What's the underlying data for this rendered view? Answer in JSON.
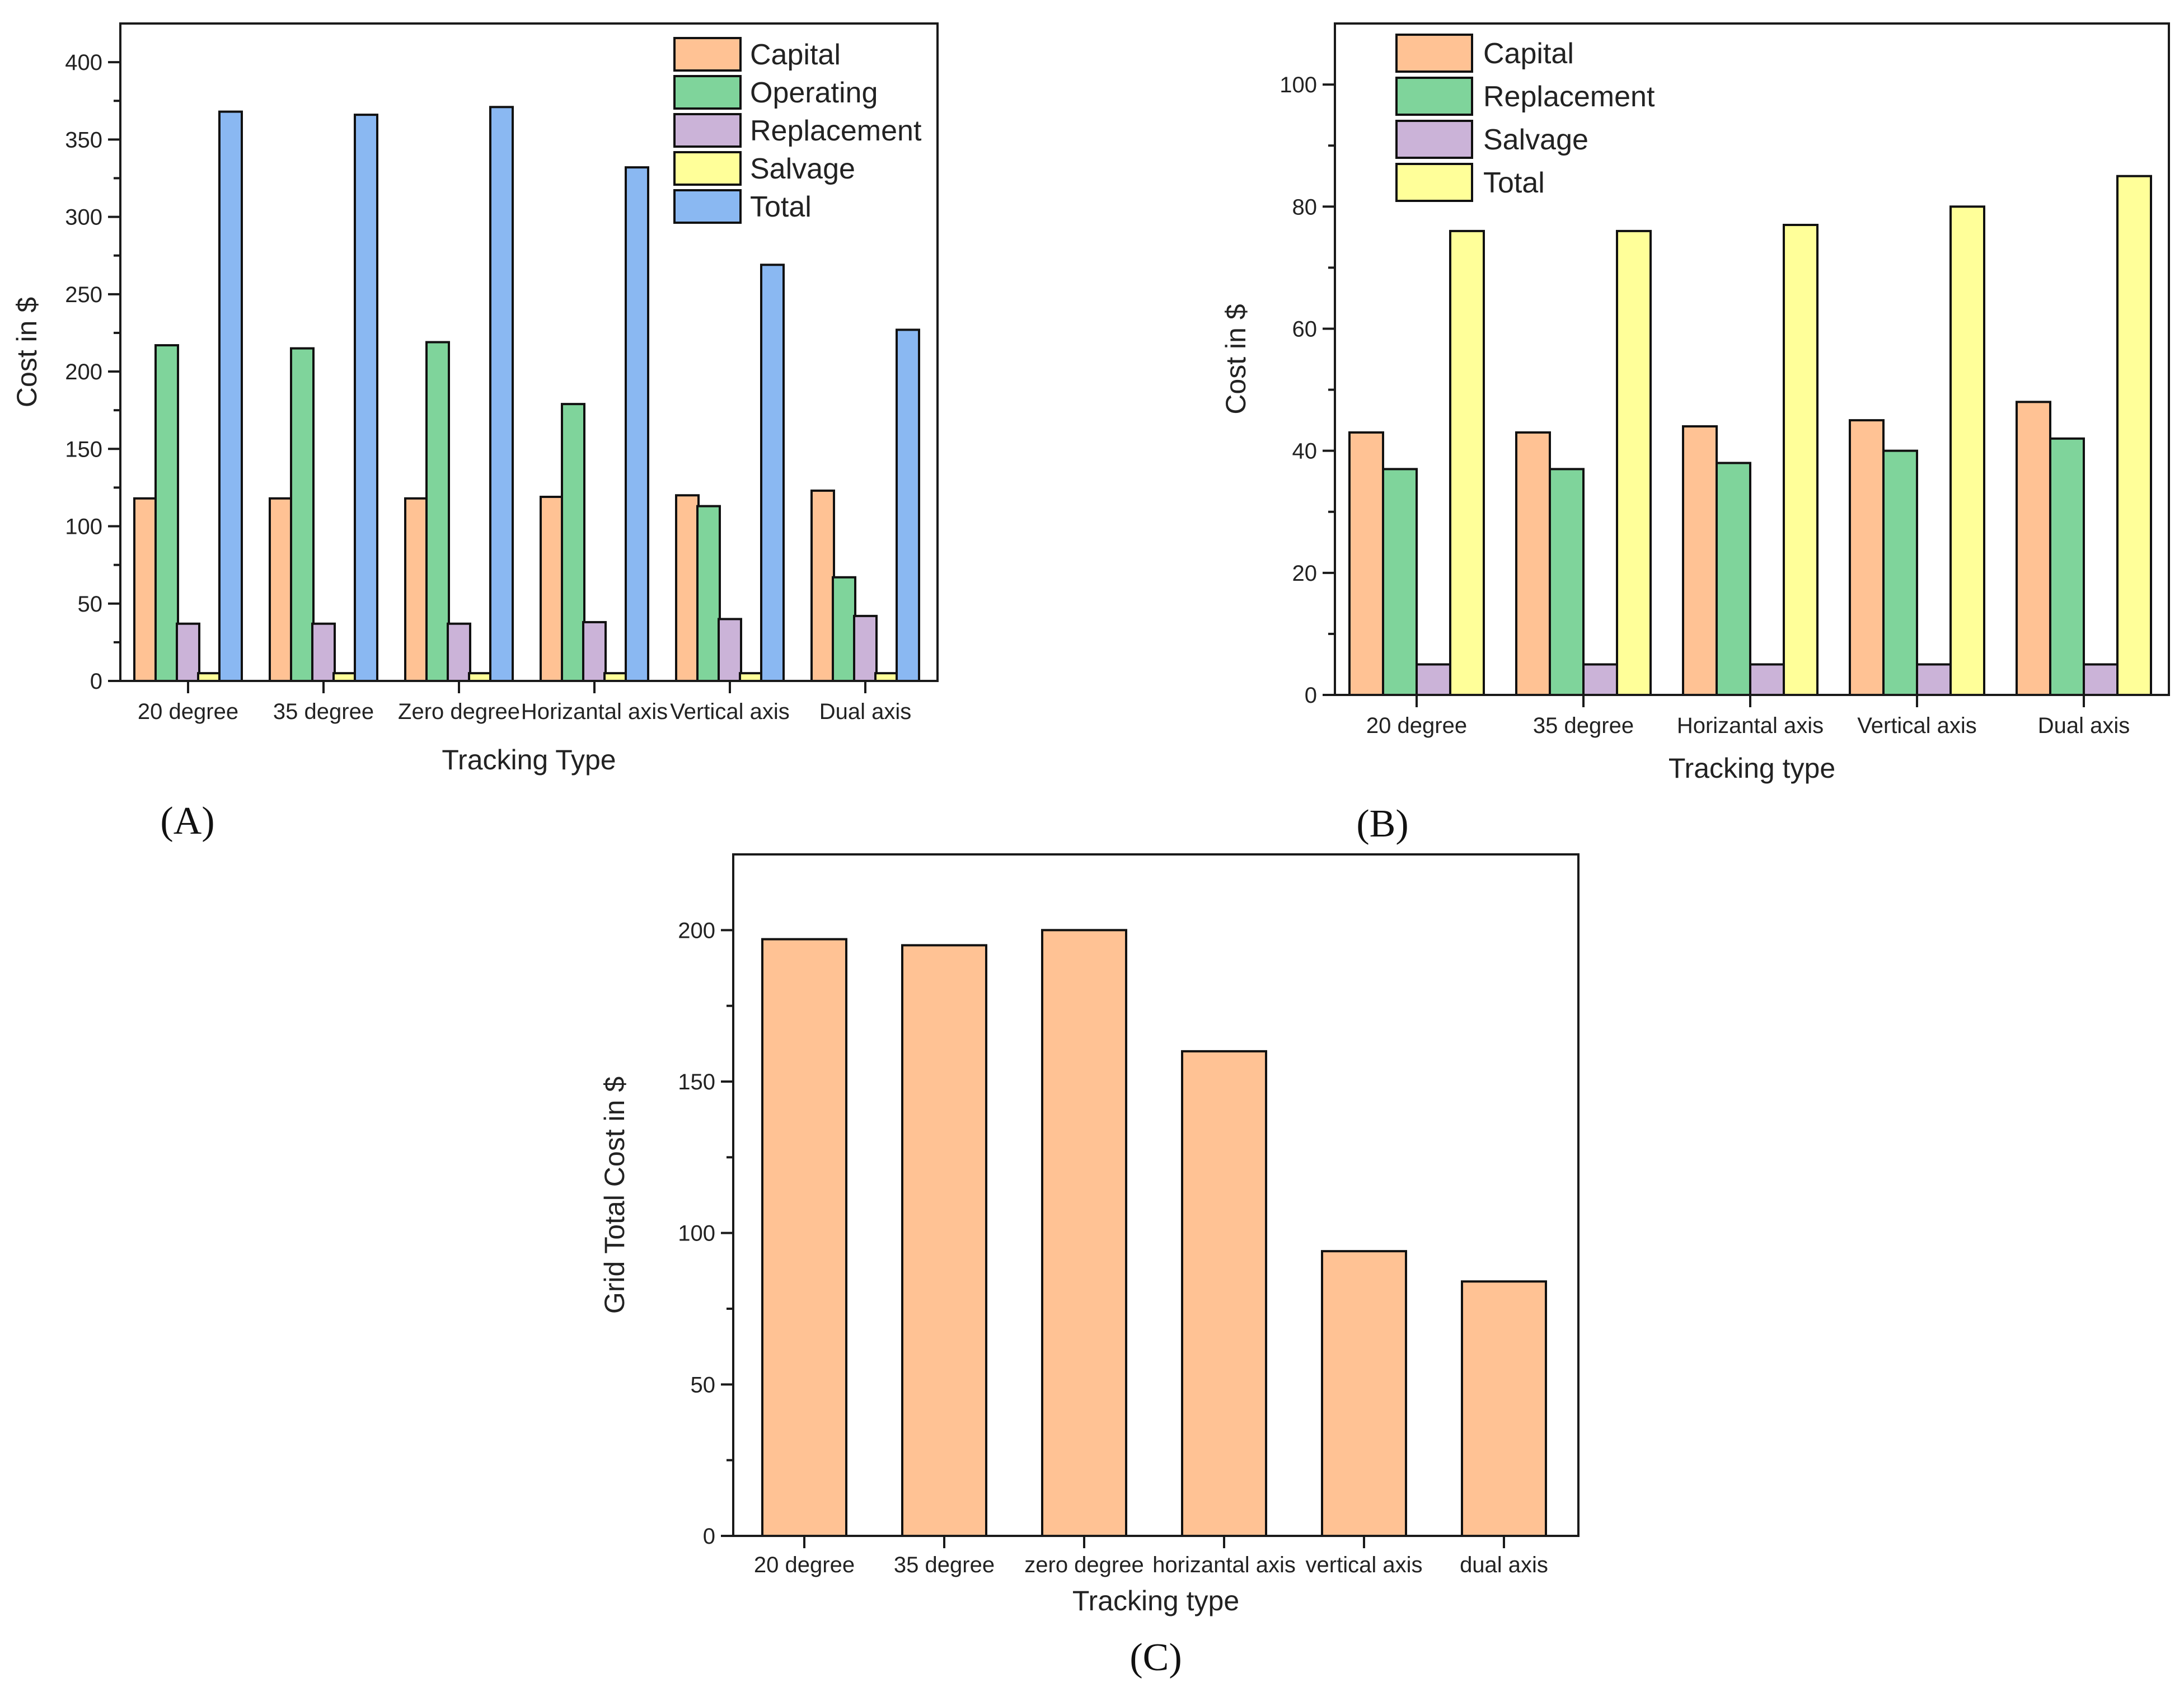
{
  "chart_data": [
    {
      "id": "A",
      "type": "bar",
      "panel_label": "(A)",
      "xlabel": "Tracking Type",
      "ylabel": "Cost in $",
      "ylim": [
        0,
        425
      ],
      "yticks": [
        0,
        50,
        100,
        150,
        200,
        250,
        300,
        350,
        400
      ],
      "categories": [
        "20 degree",
        "35 degree",
        "Zero degree",
        "Horizantal axis",
        "Vertical axis",
        "Dual axis"
      ],
      "legend_position": "top-right",
      "series": [
        {
          "name": "Capital",
          "color": "#ffc294",
          "values": [
            118,
            118,
            118,
            119,
            120,
            123
          ]
        },
        {
          "name": "Operating",
          "color": "#7fd49b",
          "values": [
            217,
            215,
            219,
            179,
            113,
            67
          ]
        },
        {
          "name": "Replacement",
          "color": "#cbb3d8",
          "values": [
            37,
            37,
            37,
            38,
            40,
            42
          ]
        },
        {
          "name": "Salvage",
          "color": "#ffff99",
          "values": [
            5,
            5,
            5,
            5,
            5,
            5
          ]
        },
        {
          "name": "Total",
          "color": "#8ab8f2",
          "values": [
            368,
            366,
            371,
            332,
            269,
            227
          ]
        }
      ]
    },
    {
      "id": "B",
      "type": "bar",
      "panel_label": "(B)",
      "xlabel": "Tracking type",
      "ylabel": "Cost in $",
      "ylim": [
        0,
        110
      ],
      "yticks": [
        0,
        20,
        40,
        60,
        80,
        100
      ],
      "categories": [
        "20 degree",
        "35 degree",
        "Horizantal axis",
        "Vertical axis",
        "Dual axis"
      ],
      "legend_position": "top-left",
      "series": [
        {
          "name": "Capital",
          "color": "#ffc294",
          "values": [
            43,
            43,
            44,
            45,
            48
          ]
        },
        {
          "name": "Replacement",
          "color": "#7fd49b",
          "values": [
            37,
            37,
            38,
            40,
            42
          ]
        },
        {
          "name": "Salvage",
          "color": "#cbb3d8",
          "values": [
            5,
            5,
            5,
            5,
            5
          ]
        },
        {
          "name": "Total",
          "color": "#ffff99",
          "values": [
            76,
            76,
            77,
            80,
            85
          ]
        }
      ]
    },
    {
      "id": "C",
      "type": "bar",
      "panel_label": "(C)",
      "xlabel": "Tracking type",
      "ylabel": "Grid Total Cost in $",
      "ylim": [
        0,
        225
      ],
      "yticks": [
        0,
        50,
        100,
        150,
        200
      ],
      "categories": [
        "20 degree",
        "35 degree",
        "zero degree",
        "horizantal axis",
        "vertical axis",
        "dual axis"
      ],
      "series": [
        {
          "name": "Grid Total Cost",
          "color": "#ffc294",
          "values": [
            197,
            195,
            200,
            160,
            94,
            84
          ]
        }
      ]
    }
  ]
}
